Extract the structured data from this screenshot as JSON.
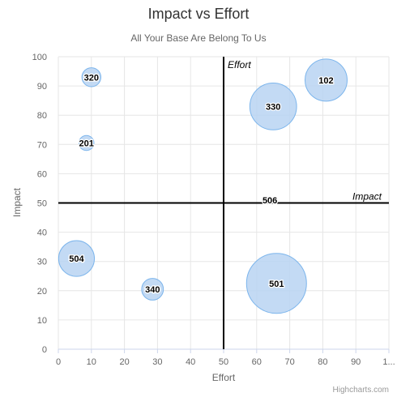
{
  "chart_data": {
    "type": "bubble",
    "title": "Impact vs Effort",
    "subtitle": "All Your Base Are Belong To Us",
    "xlabel": "Effort",
    "ylabel": "Impact",
    "xlim": [
      0,
      100
    ],
    "ylim": [
      0,
      100
    ],
    "x_ticks": [
      "0",
      "10",
      "20",
      "30",
      "40",
      "50",
      "60",
      "70",
      "80",
      "90",
      "1..."
    ],
    "y_ticks": [
      "0",
      "10",
      "20",
      "30",
      "40",
      "50",
      "60",
      "70",
      "80",
      "90",
      "100"
    ],
    "grid": true,
    "plot_lines": [
      {
        "axis": "x",
        "value": 50,
        "label": "Effort"
      },
      {
        "axis": "y",
        "value": 50,
        "label": "Impact"
      }
    ],
    "points": [
      {
        "label": "320",
        "x": 10,
        "y": 93,
        "z": 320
      },
      {
        "label": "201",
        "x": 8.5,
        "y": 70.5,
        "z": 201
      },
      {
        "label": "330",
        "x": 65,
        "y": 83,
        "z": 1950
      },
      {
        "label": "102",
        "x": 81,
        "y": 92,
        "z": 1580
      },
      {
        "label": "506",
        "x": 64,
        "y": 51,
        "z": 0
      },
      {
        "label": "504",
        "x": 5.5,
        "y": 31,
        "z": 1140
      },
      {
        "label": "340",
        "x": 28.5,
        "y": 20.5,
        "z": 420
      },
      {
        "label": "501",
        "x": 66,
        "y": 22.5,
        "z": 3200
      }
    ],
    "bubble_fill": "#b8d4f2",
    "bubble_stroke": "#7cb5ec",
    "credits": "Highcharts.com"
  }
}
